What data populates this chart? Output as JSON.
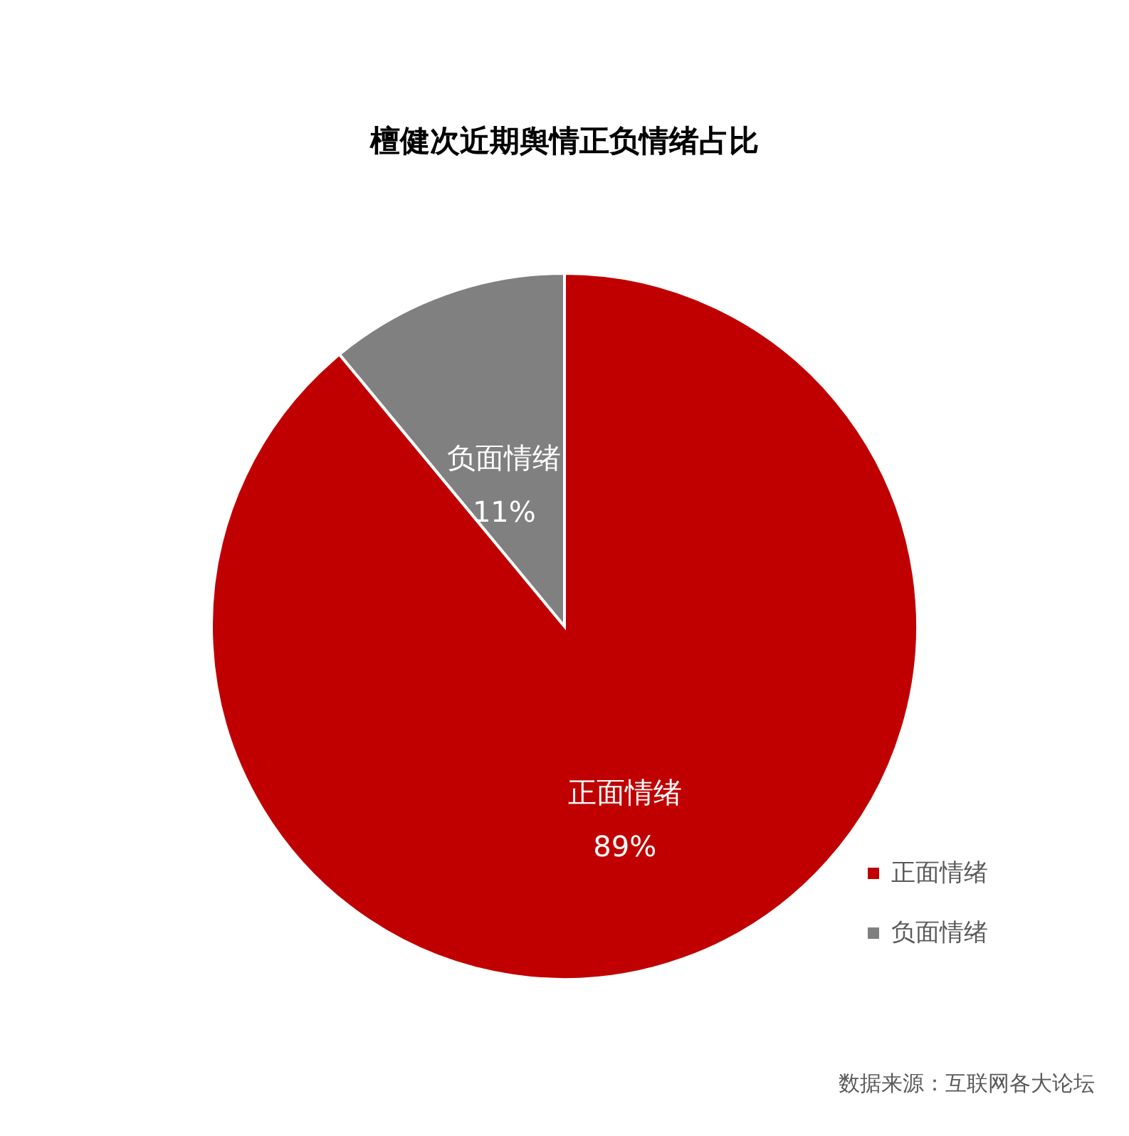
{
  "chart_data": {
    "type": "pie",
    "title": "檀健次近期舆情正负情绪占比",
    "categories": [
      "正面情绪",
      "负面情绪"
    ],
    "values": [
      89,
      11
    ],
    "colors": [
      "#c00000",
      "#808080"
    ],
    "value_labels": [
      "89%",
      "11%"
    ],
    "legend": "bottom right",
    "annotations": [
      "数据来源：互联网各大论坛"
    ]
  }
}
